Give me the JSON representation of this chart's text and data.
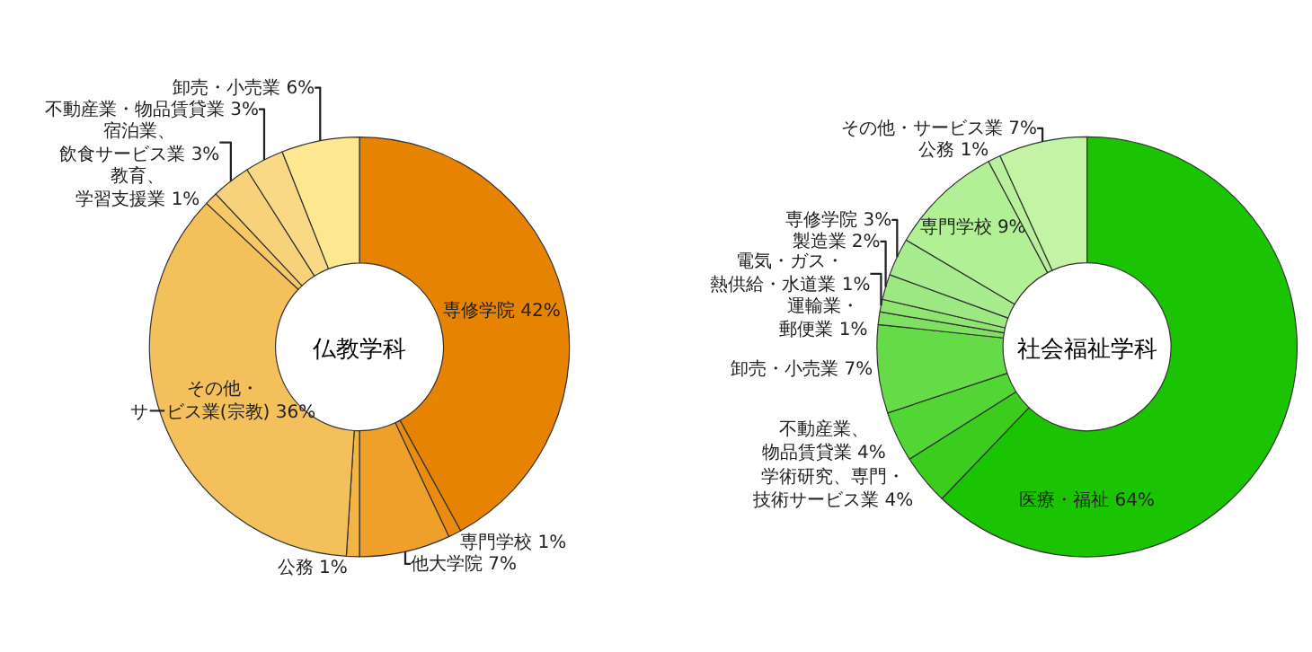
{
  "chart_data": [
    {
      "type": "donut",
      "title": "仏教学科",
      "categories": [
        "専修学院",
        "専門学校",
        "他大学院",
        "公務",
        "その他・サービス業(宗教)",
        "教育、学習支援業",
        "宿泊業、飲食サービス業",
        "不動産業・物品賃貸業",
        "卸売・小売業"
      ],
      "values": [
        42,
        1,
        7,
        1,
        36,
        1,
        3,
        3,
        6
      ],
      "value_labels": [
        "42%",
        "1%",
        "7%",
        "1%",
        "36%",
        "1%",
        "3%",
        "3%",
        "6%"
      ],
      "colors": [
        "#e68300",
        "#e98c10",
        "#efa02a",
        "#f2b445",
        "#f4c05c",
        "#f6c868",
        "#f8d27a",
        "#fad986",
        "#fde790"
      ]
    },
    {
      "type": "donut",
      "title": "社会福祉学科",
      "categories": [
        "医療・福祉",
        "学術研究、専門・技術サービス業",
        "不動産業、物品賃貸業",
        "卸売・小売業",
        "運輸業・郵便業",
        "電気・ガス・熱供給・水道業",
        "製造業",
        "専修学院",
        "専門学校",
        "公務",
        "その他・サービス業"
      ],
      "values": [
        64,
        4,
        4,
        7,
        1,
        1,
        2,
        3,
        9,
        1,
        7
      ],
      "value_labels": [
        "64%",
        "4%",
        "4%",
        "7%",
        "1%",
        "1%",
        "2%",
        "3%",
        "9%",
        "1%",
        "7%"
      ],
      "colors": [
        "#1ac400",
        "#3ccc1e",
        "#52d635",
        "#66db48",
        "#80e062",
        "#8fe472",
        "#9ee884",
        "#a8ec90",
        "#b2f096",
        "#b8f09c",
        "#c2f4a4"
      ]
    }
  ]
}
